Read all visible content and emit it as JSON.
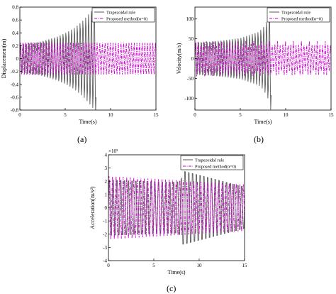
{
  "panel_labels": [
    "(a)",
    "(b)",
    "(c)"
  ],
  "chart_data": [
    {
      "type": "line",
      "panel": "(a)",
      "xlabel": "Time(s)",
      "ylabel": "Displacement(m)",
      "xlim": [
        0,
        15
      ],
      "ylim": [
        -0.8,
        0.8
      ],
      "xticks": [
        "0",
        "5",
        "10",
        "15"
      ],
      "yticks": [
        "-0.8",
        "-0.6",
        "-0.4",
        "-0.2",
        "0",
        "0.2",
        "0.4",
        "0.6",
        "0.8"
      ],
      "grid": false,
      "legend_position": "top-right",
      "series": [
        {
          "name": "Trapezoidal rule",
          "color": "#555555",
          "style": "solid",
          "envelope": {
            "x": [
              0,
              2,
              3,
              4,
              5,
              6,
              7,
              7.5,
              8,
              8.3,
              8.5
            ],
            "amp": [
              0.25,
              0.28,
              0.32,
              0.36,
              0.42,
              0.5,
              0.62,
              0.7,
              0.78,
              0.85,
              0.9
            ]
          }
        },
        {
          "name": "Proposed method(α=0)",
          "color": "#cc00cc",
          "style": "dash-dot",
          "envelope": {
            "x": [
              0,
              15
            ],
            "amp": [
              0.25,
              0.25
            ]
          }
        }
      ]
    },
    {
      "type": "line",
      "panel": "(b)",
      "xlabel": "Time(s)",
      "ylabel": "Velocity(m/s)",
      "xlim": [
        0,
        15
      ],
      "ylim": [
        -130,
        130
      ],
      "xticks": [
        "0",
        "5",
        "10",
        "15"
      ],
      "yticks": [
        "-100",
        "-50",
        "0",
        "50",
        "100"
      ],
      "grid": false,
      "legend_position": "top-right",
      "series": [
        {
          "name": "Trapezoidal rule",
          "color": "#555555",
          "style": "solid",
          "envelope": {
            "x": [
              0,
              3,
              5,
              7,
              7.5,
              8,
              8.3,
              8.5
            ],
            "amp": [
              45,
              50,
              55,
              70,
              80,
              100,
              130,
              140
            ]
          }
        },
        {
          "name": "Proposed method(α=0)",
          "color": "#cc00cc",
          "style": "dash-dot",
          "envelope": {
            "x": [
              0,
              15
            ],
            "amp": [
              45,
              45
            ]
          }
        }
      ]
    },
    {
      "type": "line",
      "panel": "(c)",
      "xlabel": "Time(s)",
      "ylabel": "Acceleration(m/s²)",
      "y_multiplier": "×10⁵",
      "xlim": [
        0,
        15
      ],
      "ylim": [
        -4,
        4
      ],
      "xticks": [
        "0",
        "5",
        "10",
        "15"
      ],
      "yticks": [
        "-4",
        "-3",
        "-2",
        "-1",
        "0",
        "1",
        "2",
        "3",
        "4"
      ],
      "grid": false,
      "legend_position": "top-right",
      "series": [
        {
          "name": "Trapezoidal rule",
          "color": "#555555",
          "style": "solid",
          "envelope": {
            "x": [
              0,
              7.5,
              8,
              8.2,
              15
            ],
            "amp": [
              2.4,
              2.2,
              2.4,
              3.2,
              1.8
            ]
          }
        },
        {
          "name": "Proposed method(α=0)",
          "color": "#cc00cc",
          "style": "dash-dot",
          "envelope": {
            "x": [
              0,
              5,
              10,
              15
            ],
            "amp": [
              2.4,
              2.2,
              2.0,
              1.8
            ]
          }
        }
      ]
    }
  ]
}
